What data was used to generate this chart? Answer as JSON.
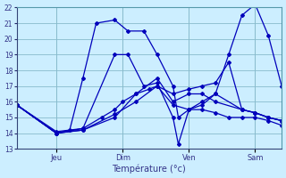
{
  "title": "Température (°c)",
  "bg_color": "#cceeff",
  "grid_color": "#88bbcc",
  "line_color": "#0000bb",
  "ylim": [
    13,
    22
  ],
  "yticks": [
    13,
    14,
    15,
    16,
    17,
    18,
    19,
    20,
    21,
    22
  ],
  "xlim": [
    0,
    10
  ],
  "x_tick_positions": [
    1.5,
    4.0,
    6.5,
    9.0
  ],
  "x_tick_labels": [
    "Jeu",
    "Dim",
    "Ven",
    "Sam"
  ],
  "lines": [
    {
      "x": [
        0.0,
        1.5,
        2.0,
        2.5,
        3.0,
        3.7,
        4.2,
        4.8,
        5.3,
        5.9,
        6.1,
        6.5,
        7.0,
        7.5,
        8.0,
        8.5,
        9.0,
        9.5,
        10.0
      ],
      "y": [
        15.8,
        14.0,
        14.2,
        17.5,
        21.0,
        21.2,
        20.5,
        20.5,
        19.0,
        17.0,
        15.0,
        15.5,
        16.0,
        16.5,
        19.0,
        21.5,
        22.2,
        20.2,
        17.0
      ]
    },
    {
      "x": [
        0.0,
        1.5,
        2.5,
        3.7,
        4.2,
        4.8,
        5.3,
        5.9,
        6.1,
        6.5,
        7.0,
        7.5,
        8.5,
        9.0,
        9.5,
        10.0
      ],
      "y": [
        15.8,
        14.0,
        14.3,
        19.0,
        19.0,
        17.0,
        17.2,
        15.0,
        13.3,
        15.5,
        15.8,
        16.5,
        15.5,
        15.3,
        15.0,
        14.8
      ]
    },
    {
      "x": [
        0.0,
        1.5,
        2.5,
        3.7,
        4.5,
        5.3,
        5.9,
        6.5,
        7.0,
        7.5,
        8.5,
        9.0,
        9.5,
        10.0
      ],
      "y": [
        15.8,
        14.0,
        14.2,
        15.0,
        16.5,
        17.5,
        16.0,
        16.5,
        16.5,
        16.0,
        15.5,
        15.3,
        15.0,
        14.8
      ]
    },
    {
      "x": [
        0.0,
        1.5,
        2.5,
        3.7,
        4.5,
        5.3,
        5.9,
        6.5,
        7.0,
        7.5,
        8.0,
        8.5,
        9.0,
        9.5,
        10.0
      ],
      "y": [
        15.8,
        14.0,
        14.2,
        15.2,
        16.0,
        17.0,
        16.5,
        16.8,
        17.0,
        17.2,
        18.5,
        15.5,
        15.3,
        15.0,
        14.8
      ]
    },
    {
      "x": [
        0.0,
        1.5,
        2.5,
        3.2,
        3.7,
        4.0,
        4.5,
        5.0,
        5.3,
        5.9,
        6.5,
        7.0,
        7.5,
        8.0,
        8.5,
        9.0,
        9.5,
        10.0
      ],
      "y": [
        15.8,
        14.1,
        14.3,
        15.0,
        15.5,
        16.0,
        16.5,
        16.8,
        17.0,
        15.8,
        15.5,
        15.5,
        15.3,
        15.0,
        15.0,
        15.0,
        14.8,
        14.5
      ]
    }
  ]
}
